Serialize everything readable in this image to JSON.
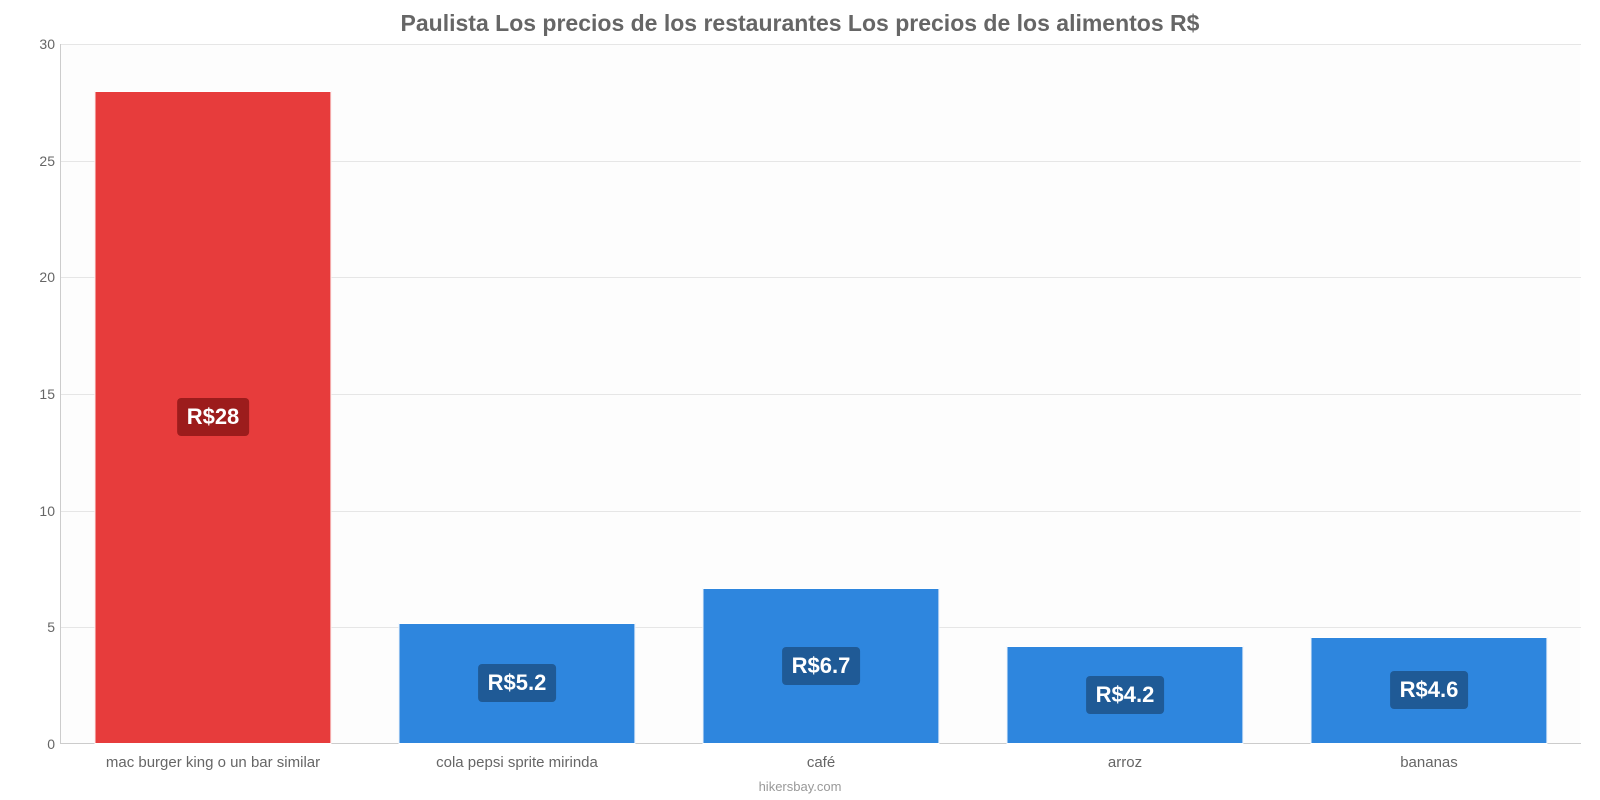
{
  "chart": {
    "type": "bar",
    "title": "Paulista Los precios de los restaurantes Los precios de los alimentos R$",
    "title_fontsize": 23,
    "title_color": "#666666",
    "background_color": "#ffffff",
    "plot_background": "#fdfdfd",
    "grid_color": "#e6e6e6",
    "axis_color": "#cccccc",
    "tick_font_color": "#666666",
    "tick_fontsize": 14,
    "xlabel_fontsize": 15,
    "value_fontsize": 22,
    "ylim": [
      0,
      30
    ],
    "ytick_step": 5,
    "bar_width_ratio": 0.78,
    "currency_prefix": "R$",
    "categories": [
      "mac burger king o un bar similar",
      "cola pepsi sprite mirinda",
      "café",
      "arroz",
      "bananas"
    ],
    "values": [
      28,
      5.2,
      6.7,
      4.2,
      4.6
    ],
    "value_labels": [
      "R$28",
      "R$5.2",
      "R$6.7",
      "R$4.2",
      "R$4.6"
    ],
    "bar_colors": [
      "#e73c3c",
      "#2e86de",
      "#2e86de",
      "#2e86de",
      "#2e86de"
    ],
    "badge_colors": [
      "#9c1c1c",
      "#1f5a96",
      "#1f5a96",
      "#1f5a96",
      "#1f5a96"
    ],
    "credit": "hikersbay.com",
    "credit_color": "#999999",
    "credit_fontsize": 13
  }
}
